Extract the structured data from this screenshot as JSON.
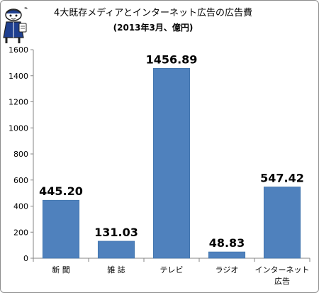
{
  "chart_data": {
    "type": "bar",
    "title": "4大既存メディアとインターネット広告の広告費",
    "subtitle": "(2013年3月、億円)",
    "categories": [
      [
        "新 聞"
      ],
      [
        "雑 誌"
      ],
      [
        "テレビ"
      ],
      [
        "ラジオ"
      ],
      [
        "インターネット",
        "広告"
      ]
    ],
    "values": [
      445.2,
      131.03,
      1456.89,
      48.83,
      547.42
    ],
    "value_labels": [
      "445.20",
      "131.03",
      "1456.89",
      "48.83",
      "547.42"
    ],
    "ylim": [
      0,
      1600
    ],
    "yticks": [
      0,
      200,
      400,
      600,
      800,
      1000,
      1200,
      1400,
      1600
    ],
    "xlabel": "",
    "ylabel": "",
    "grid": false,
    "bar_color": "#4f81bd"
  }
}
